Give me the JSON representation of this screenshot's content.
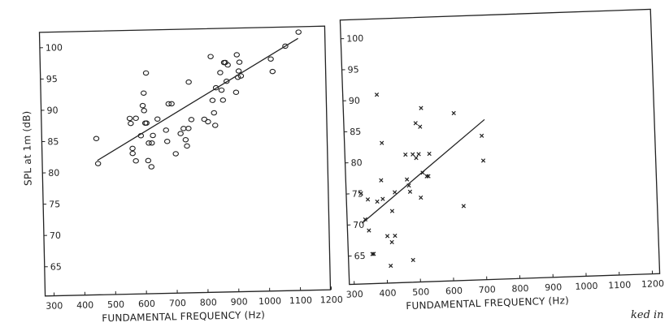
{
  "fragment_text": "ked in",
  "chart_data": [
    {
      "type": "scatter",
      "xlabel": "FUNDAMENTAL FREQUENCY (Hz)",
      "ylabel": "SPL at 1m (dB)",
      "xlim": [
        300,
        1200
      ],
      "ylim": [
        60,
        102
      ],
      "xticks": [
        300,
        400,
        500,
        600,
        700,
        800,
        900,
        1000,
        1100,
        1200
      ],
      "yticks": [
        65,
        70,
        75,
        80,
        85,
        90,
        95,
        100
      ],
      "xtick_labels": [
        "300",
        "400",
        "500",
        "600",
        "700",
        "800",
        "900",
        "1000",
        "1100",
        "1200"
      ],
      "ytick_labels": [
        "65",
        "70",
        "75",
        "80",
        "85",
        "90",
        "95",
        "100"
      ],
      "marker": "circle",
      "points": [
        {
          "x": 448,
          "y": 85.3
        },
        {
          "x": 452,
          "y": 81.3
        },
        {
          "x": 558,
          "y": 88.4
        },
        {
          "x": 561,
          "y": 87.6
        },
        {
          "x": 565,
          "y": 83.6
        },
        {
          "x": 565,
          "y": 82.8
        },
        {
          "x": 575,
          "y": 81.6
        },
        {
          "x": 578,
          "y": 88.4
        },
        {
          "x": 593,
          "y": 85.6
        },
        {
          "x": 601,
          "y": 90.4
        },
        {
          "x": 605,
          "y": 92.4
        },
        {
          "x": 605,
          "y": 89.6
        },
        {
          "x": 608,
          "y": 87.6
        },
        {
          "x": 612,
          "y": 87.6
        },
        {
          "x": 614,
          "y": 95.6
        },
        {
          "x": 615,
          "y": 81.6
        },
        {
          "x": 618,
          "y": 84.4
        },
        {
          "x": 625,
          "y": 80.6
        },
        {
          "x": 628,
          "y": 84.4
        },
        {
          "x": 632,
          "y": 85.6
        },
        {
          "x": 648,
          "y": 88.2
        },
        {
          "x": 675,
          "y": 86.4
        },
        {
          "x": 678,
          "y": 84.6
        },
        {
          "x": 685,
          "y": 90.6
        },
        {
          "x": 695,
          "y": 90.6
        },
        {
          "x": 705,
          "y": 82.6
        },
        {
          "x": 722,
          "y": 85.8
        },
        {
          "x": 732,
          "y": 86.6
        },
        {
          "x": 738,
          "y": 84.8
        },
        {
          "x": 742,
          "y": 83.8
        },
        {
          "x": 748,
          "y": 86.6
        },
        {
          "x": 752,
          "y": 94.0
        },
        {
          "x": 758,
          "y": 88.0
        },
        {
          "x": 800,
          "y": 88.0
        },
        {
          "x": 812,
          "y": 87.6
        },
        {
          "x": 825,
          "y": 98.0
        },
        {
          "x": 828,
          "y": 91.0
        },
        {
          "x": 832,
          "y": 89.0
        },
        {
          "x": 835,
          "y": 87.0
        },
        {
          "x": 840,
          "y": 93.0
        },
        {
          "x": 855,
          "y": 95.4
        },
        {
          "x": 858,
          "y": 92.6
        },
        {
          "x": 862,
          "y": 91.0
        },
        {
          "x": 868,
          "y": 97.0
        },
        {
          "x": 872,
          "y": 97.0
        },
        {
          "x": 875,
          "y": 94.0
        },
        {
          "x": 880,
          "y": 96.6
        },
        {
          "x": 905,
          "y": 92.2
        },
        {
          "x": 910,
          "y": 98.2
        },
        {
          "x": 912,
          "y": 94.6
        },
        {
          "x": 915,
          "y": 95.6
        },
        {
          "x": 918,
          "y": 97.0
        },
        {
          "x": 922,
          "y": 94.8
        },
        {
          "x": 1020,
          "y": 97.4
        },
        {
          "x": 1025,
          "y": 95.4
        },
        {
          "x": 1068,
          "y": 99.4
        },
        {
          "x": 1112,
          "y": 101.6
        }
      ],
      "fit_line": [
        [
          450,
          81.8
        ],
        [
          1110,
          100.6
        ]
      ]
    },
    {
      "type": "scatter",
      "xlabel": "FUNDAMENTAL FREQUENCY (Hz)",
      "ylabel": "",
      "xlim": [
        300,
        1200
      ],
      "ylim": [
        60,
        102
      ],
      "xticks": [
        300,
        400,
        500,
        600,
        700,
        800,
        900,
        1000,
        1100,
        1200
      ],
      "yticks": [
        65,
        70,
        75,
        80,
        85,
        90,
        95,
        100
      ],
      "xtick_labels": [
        "300",
        "400",
        "500",
        "600",
        "700",
        "800",
        "900",
        "1000",
        "1100",
        "1200"
      ],
      "ytick_labels": [
        "65",
        "70",
        "75",
        "80",
        "85",
        "90",
        "95",
        "100"
      ],
      "marker": "cross",
      "points": [
        {
          "x": 330,
          "y": 75.0
        },
        {
          "x": 340,
          "y": 70.8
        },
        {
          "x": 350,
          "y": 74.0
        },
        {
          "x": 350,
          "y": 69.0
        },
        {
          "x": 358,
          "y": 65.2
        },
        {
          "x": 362,
          "y": 65.2
        },
        {
          "x": 378,
          "y": 73.6
        },
        {
          "x": 388,
          "y": 90.8
        },
        {
          "x": 392,
          "y": 77.0
        },
        {
          "x": 395,
          "y": 74.0
        },
        {
          "x": 398,
          "y": 83.0
        },
        {
          "x": 405,
          "y": 68.0
        },
        {
          "x": 412,
          "y": 63.2
        },
        {
          "x": 418,
          "y": 67.0
        },
        {
          "x": 422,
          "y": 72.0
        },
        {
          "x": 432,
          "y": 75.0
        },
        {
          "x": 428,
          "y": 68.0
        },
        {
          "x": 468,
          "y": 81.0
        },
        {
          "x": 470,
          "y": 77.0
        },
        {
          "x": 475,
          "y": 76.0
        },
        {
          "x": 478,
          "y": 75.0
        },
        {
          "x": 480,
          "y": 64.0
        },
        {
          "x": 490,
          "y": 81.0
        },
        {
          "x": 500,
          "y": 80.4
        },
        {
          "x": 502,
          "y": 86.0
        },
        {
          "x": 508,
          "y": 81.0
        },
        {
          "x": 510,
          "y": 74.0
        },
        {
          "x": 515,
          "y": 85.4
        },
        {
          "x": 518,
          "y": 78.0
        },
        {
          "x": 520,
          "y": 88.4
        },
        {
          "x": 530,
          "y": 77.4
        },
        {
          "x": 535,
          "y": 77.4
        },
        {
          "x": 540,
          "y": 81.0
        },
        {
          "x": 618,
          "y": 87.4
        },
        {
          "x": 638,
          "y": 72.4
        },
        {
          "x": 700,
          "y": 83.6
        },
        {
          "x": 702,
          "y": 79.6
        }
      ],
      "fit_line": [
        [
          330,
          70.2
        ],
        [
          710,
          86.2
        ]
      ]
    }
  ]
}
